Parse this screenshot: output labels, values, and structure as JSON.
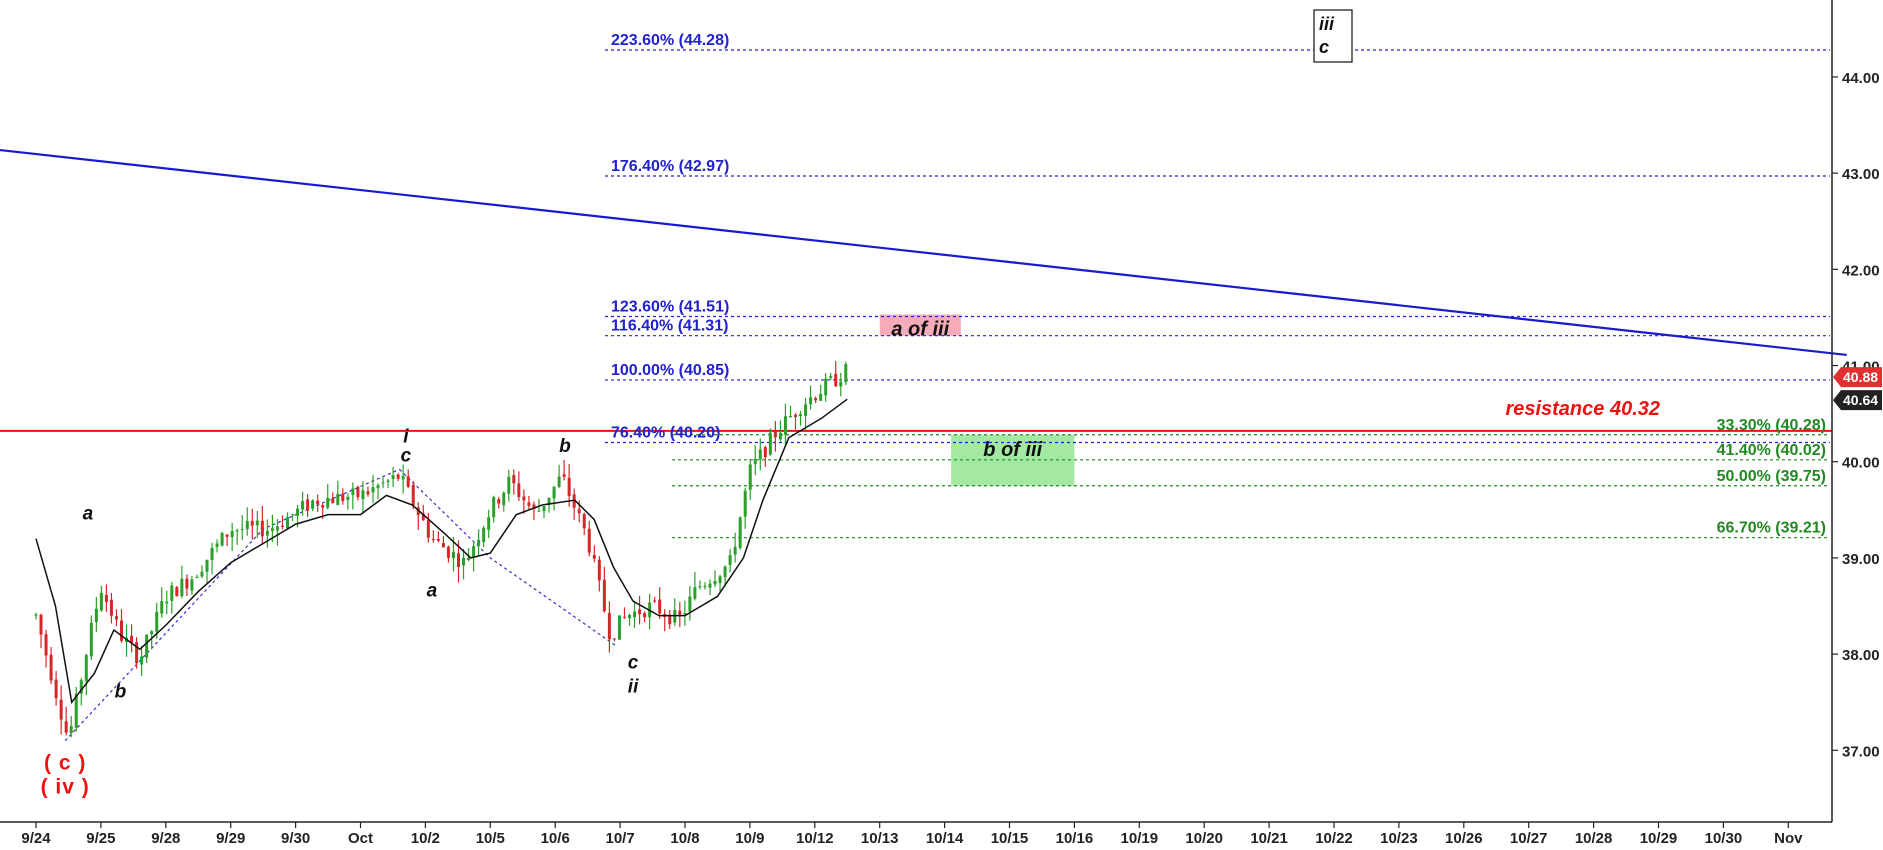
{
  "chart_data": {
    "type": "candlestick",
    "y_range": [
      36.4,
      44.8
    ],
    "y_ticks": [
      "37.00",
      "38.00",
      "39.00",
      "40.00",
      "41.00",
      "42.00",
      "43.00",
      "44.00"
    ],
    "y_tick_values": [
      37,
      38,
      39,
      40,
      41,
      42,
      43,
      44
    ],
    "x_labels": [
      "9/24",
      "9/25",
      "9/28",
      "9/29",
      "9/30",
      "Oct",
      "10/2",
      "10/5",
      "10/6",
      "10/7",
      "10/8",
      "10/9",
      "10/12",
      "10/13",
      "10/14",
      "10/15",
      "10/16",
      "10/19",
      "10/20",
      "10/21",
      "10/22",
      "10/23",
      "10/26",
      "10/27",
      "10/28",
      "10/29",
      "10/30",
      "Nov"
    ],
    "grid": false,
    "colors": {
      "up": "#2aa02a",
      "down": "#d62728",
      "moving_average": "#111111",
      "fib_blue": "#2222cc",
      "fib_green": "#228822",
      "resistance": "#ee1111",
      "trendline": "#1a1acc"
    },
    "price_path": [
      {
        "day": 0.0,
        "price": 38.4
      },
      {
        "day": 0.35,
        "price": 37.5
      },
      {
        "day": 0.5,
        "price": 37.1
      },
      {
        "day": 0.8,
        "price": 38.1
      },
      {
        "day": 1.0,
        "price": 38.7
      },
      {
        "day": 1.3,
        "price": 38.2
      },
      {
        "day": 1.6,
        "price": 37.95
      },
      {
        "day": 2.0,
        "price": 38.6
      },
      {
        "day": 2.4,
        "price": 38.8
      },
      {
        "day": 3.0,
        "price": 39.3
      },
      {
        "day": 3.6,
        "price": 39.3
      },
      {
        "day": 4.3,
        "price": 39.6
      },
      {
        "day": 5.0,
        "price": 39.65
      },
      {
        "day": 5.6,
        "price": 39.85
      },
      {
        "day": 6.1,
        "price": 39.2
      },
      {
        "day": 6.6,
        "price": 38.95
      },
      {
        "day": 7.0,
        "price": 39.5
      },
      {
        "day": 7.3,
        "price": 39.8
      },
      {
        "day": 7.7,
        "price": 39.45
      },
      {
        "day": 8.1,
        "price": 39.85
      },
      {
        "day": 8.5,
        "price": 39.2
      },
      {
        "day": 8.85,
        "price": 38.2
      },
      {
        "day": 9.1,
        "price": 38.4
      },
      {
        "day": 9.5,
        "price": 38.5
      },
      {
        "day": 9.9,
        "price": 38.35
      },
      {
        "day": 10.2,
        "price": 38.7
      },
      {
        "day": 10.7,
        "price": 38.95
      },
      {
        "day": 11.0,
        "price": 39.9
      },
      {
        "day": 11.4,
        "price": 40.3
      },
      {
        "day": 11.8,
        "price": 40.6
      },
      {
        "day": 12.2,
        "price": 40.8
      },
      {
        "day": 12.5,
        "price": 40.95
      }
    ],
    "moving_average": [
      {
        "day": 0.0,
        "price": 39.2
      },
      {
        "day": 0.3,
        "price": 38.5
      },
      {
        "day": 0.55,
        "price": 37.5
      },
      {
        "day": 0.9,
        "price": 37.8
      },
      {
        "day": 1.2,
        "price": 38.25
      },
      {
        "day": 1.6,
        "price": 38.05
      },
      {
        "day": 2.0,
        "price": 38.3
      },
      {
        "day": 2.5,
        "price": 38.65
      },
      {
        "day": 3.0,
        "price": 38.95
      },
      {
        "day": 3.5,
        "price": 39.15
      },
      {
        "day": 4.0,
        "price": 39.35
      },
      {
        "day": 4.5,
        "price": 39.45
      },
      {
        "day": 5.0,
        "price": 39.45
      },
      {
        "day": 5.4,
        "price": 39.65
      },
      {
        "day": 5.8,
        "price": 39.55
      },
      {
        "day": 6.3,
        "price": 39.25
      },
      {
        "day": 6.7,
        "price": 39.0
      },
      {
        "day": 7.0,
        "price": 39.05
      },
      {
        "day": 7.4,
        "price": 39.45
      },
      {
        "day": 7.8,
        "price": 39.55
      },
      {
        "day": 8.3,
        "price": 39.6
      },
      {
        "day": 8.6,
        "price": 39.4
      },
      {
        "day": 8.9,
        "price": 38.9
      },
      {
        "day": 9.2,
        "price": 38.55
      },
      {
        "day": 9.6,
        "price": 38.4
      },
      {
        "day": 10.0,
        "price": 38.4
      },
      {
        "day": 10.5,
        "price": 38.6
      },
      {
        "day": 10.9,
        "price": 39.0
      },
      {
        "day": 11.2,
        "price": 39.6
      },
      {
        "day": 11.6,
        "price": 40.25
      },
      {
        "day": 12.1,
        "price": 40.45
      },
      {
        "day": 12.5,
        "price": 40.65
      }
    ],
    "fib_blue": [
      {
        "label": "223.60% (44.28)",
        "value": 44.28
      },
      {
        "label": "176.40% (42.97)",
        "value": 42.97
      },
      {
        "label": "123.60% (41.51)",
        "value": 41.51
      },
      {
        "label": "116.40% (41.31)",
        "value": 41.31
      },
      {
        "label": "100.00% (40.85)",
        "value": 40.85
      },
      {
        "label": "76.40% (40.20)",
        "value": 40.2
      }
    ],
    "fib_green": [
      {
        "label": "33.30% (40.28)",
        "value": 40.28
      },
      {
        "label": "41.40% (40.02)",
        "value": 40.02
      },
      {
        "label": "50.00% (39.75)",
        "value": 39.75
      },
      {
        "label": "66.70% (39.21)",
        "value": 39.21
      }
    ],
    "resistance": {
      "label": "resistance 40.32",
      "value": 40.32
    },
    "trendline": {
      "from": {
        "day": 0,
        "price": 43.24
      },
      "to": {
        "day": 27.9,
        "price": 41.11
      }
    },
    "zones": [
      {
        "label": "a of iii",
        "color": "#f4a8b4",
        "from_day": 13.0,
        "to_day": 14.25,
        "top": 41.53,
        "bottom": 41.31
      },
      {
        "label": "b of iii",
        "color": "#9ee89e",
        "from_day": 14.1,
        "to_day": 16.0,
        "top": 40.28,
        "bottom": 39.75
      }
    ],
    "wave_labels": [
      {
        "text": "a",
        "day": 0.8,
        "price": 39.4
      },
      {
        "text": "b",
        "day": 1.3,
        "price": 37.55
      },
      {
        "text": "i",
        "day": 5.7,
        "price": 40.2
      },
      {
        "text": "c",
        "day": 5.7,
        "price": 40.0
      },
      {
        "text": "a",
        "day": 6.1,
        "price": 38.6
      },
      {
        "text": "b",
        "day": 8.15,
        "price": 40.1
      },
      {
        "text": "c",
        "day": 9.2,
        "price": 37.85
      },
      {
        "text": "ii",
        "day": 9.2,
        "price": 37.6
      },
      {
        "text": "( c )",
        "day": 0.45,
        "price": 36.8
      },
      {
        "text": "( iv )",
        "day": 0.45,
        "price": 36.55
      }
    ],
    "boxed_label": {
      "lines": [
        "iii",
        "c"
      ],
      "day": 20.0,
      "price": 44.55
    },
    "price_badges": [
      {
        "text": "40.88",
        "value": 40.88,
        "color": "#e03030"
      },
      {
        "text": "40.64",
        "value": 40.64,
        "color": "#222222"
      }
    ]
  }
}
